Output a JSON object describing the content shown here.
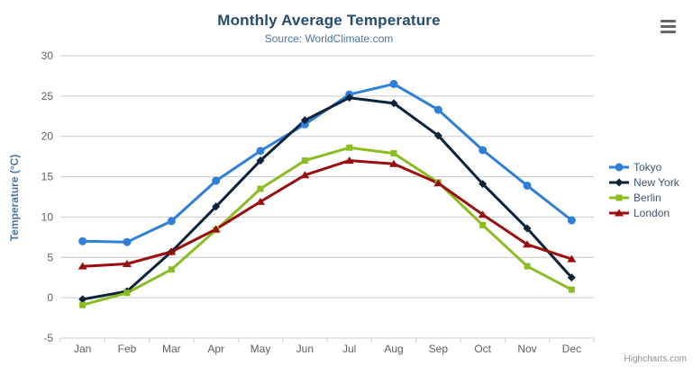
{
  "menu": {
    "tooltip": "Chart context menu"
  },
  "chart_data": {
    "type": "line",
    "title": "Monthly Average Temperature",
    "subtitle": "Source: WorldClimate.com",
    "xlabel": "",
    "ylabel": "Temperature (°C)",
    "categories": [
      "Jan",
      "Feb",
      "Mar",
      "Apr",
      "May",
      "Jun",
      "Jul",
      "Aug",
      "Sep",
      "Oct",
      "Nov",
      "Dec"
    ],
    "yticks": [
      -5,
      0,
      5,
      10,
      15,
      20,
      25,
      30
    ],
    "ylim": [
      -5,
      30
    ],
    "grid": true,
    "legend_position": "right",
    "series": [
      {
        "name": "Tokyo",
        "color": "#2f7ed8",
        "marker": "circle",
        "values": [
          7.0,
          6.9,
          9.5,
          14.5,
          18.2,
          21.5,
          25.2,
          26.5,
          23.3,
          18.3,
          13.9,
          9.6
        ]
      },
      {
        "name": "New York",
        "color": "#0d233a",
        "marker": "diamond",
        "values": [
          -0.2,
          0.8,
          5.7,
          11.3,
          17.0,
          22.0,
          24.8,
          24.1,
          20.1,
          14.1,
          8.6,
          2.5
        ]
      },
      {
        "name": "Berlin",
        "color": "#8bbc21",
        "marker": "square",
        "values": [
          -0.9,
          0.6,
          3.5,
          8.4,
          13.5,
          17.0,
          18.6,
          17.9,
          14.3,
          9.0,
          3.9,
          1.0
        ]
      },
      {
        "name": "London",
        "color": "#990f0f",
        "marker": "triangle",
        "values": [
          3.9,
          4.2,
          5.7,
          8.5,
          11.9,
          15.2,
          17.0,
          16.6,
          14.2,
          10.3,
          6.6,
          4.8
        ]
      }
    ],
    "credits": "Highcharts.com"
  },
  "colors": {
    "title": "#274b6d",
    "subtitle": "#4d759e",
    "axis_label": "#606060",
    "axis_title": "#4d759e",
    "legend_text": "#3E576F",
    "grid_line": "#C8C8C8",
    "axis_line": "#C0D0E0",
    "credits": "#909090",
    "menu_icon": "#666666"
  }
}
